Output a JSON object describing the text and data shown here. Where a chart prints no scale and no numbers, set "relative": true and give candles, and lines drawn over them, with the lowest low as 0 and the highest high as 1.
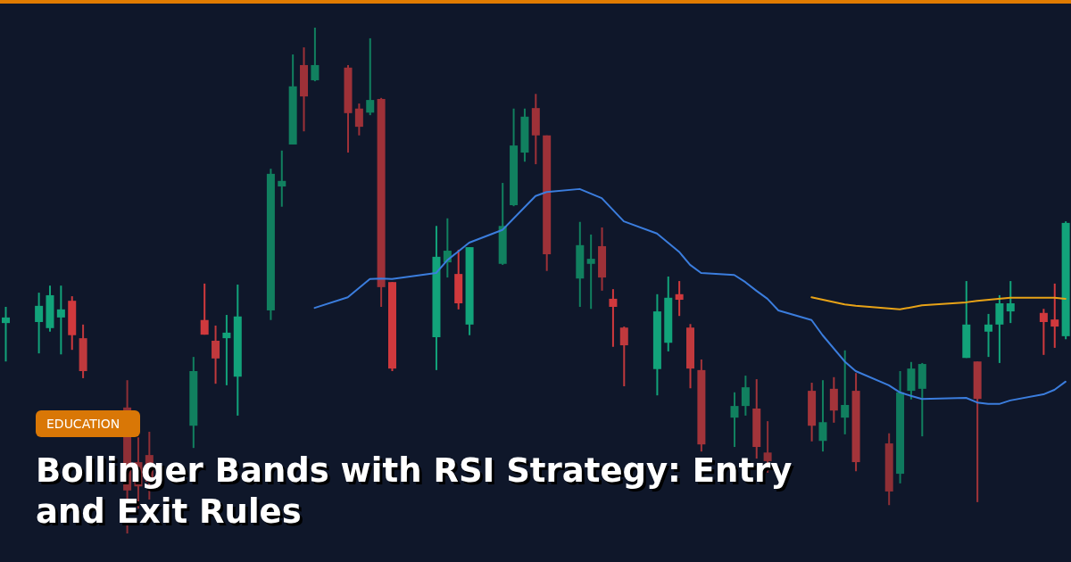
{
  "chart_data": {
    "type": "candlestick",
    "title": "Bollinger Bands with RSI Strategy: Entry and Exit Rules",
    "annotations": [
      "EDUCATION"
    ],
    "relative": true,
    "categories": [
      null,
      null,
      null,
      null,
      null,
      null,
      null,
      null,
      null,
      null,
      null,
      null,
      null,
      null,
      null,
      null,
      null,
      null,
      null,
      null,
      null,
      null,
      null,
      null,
      null,
      null,
      null,
      null,
      null,
      null,
      null,
      null,
      null,
      null,
      null,
      null,
      null,
      null,
      null,
      null,
      null,
      null,
      null,
      null,
      null,
      null,
      null,
      null,
      null,
      null,
      null,
      null,
      null,
      null,
      null,
      null,
      null,
      null,
      null,
      null,
      null,
      null,
      null,
      null,
      null,
      null,
      null,
      null,
      null,
      null,
      null,
      null,
      null,
      null,
      null,
      null,
      null,
      null,
      null,
      null,
      null,
      null,
      null,
      null,
      null,
      null,
      null,
      null,
      null,
      null,
      null,
      null,
      null,
      null,
      null,
      null,
      null
    ],
    "ohlc": [
      [
        0.416,
        0.448,
        0.34,
        0.427
      ],
      null,
      null,
      [
        0.418,
        0.476,
        0.356,
        0.45
      ],
      [
        0.406,
        0.49,
        0.399,
        0.471
      ],
      [
        0.427,
        0.49,
        0.354,
        0.443
      ],
      [
        0.46,
        0.469,
        0.363,
        0.392
      ],
      [
        0.386,
        0.413,
        0.307,
        0.321
      ],
      null,
      null,
      null,
      [
        0.249,
        0.303,
        0,
        0.085
      ],
      [
        0.141,
        0.19,
        0.049,
        0.093
      ],
      [
        0.155,
        0.201,
        0.067,
        0.102
      ],
      null,
      null,
      null,
      [
        0.213,
        0.349,
        0.169,
        0.321
      ],
      [
        0.422,
        0.494,
        0.393,
        0.393
      ],
      [
        0.381,
        0.411,
        0.296,
        0.346
      ],
      [
        0.386,
        0.432,
        0.293,
        0.397
      ],
      [
        0.31,
        0.492,
        0.233,
        0.429
      ],
      null,
      null,
      [
        0.441,
        0.721,
        0.422,
        0.711
      ],
      [
        0.686,
        0.757,
        0.646,
        0.697
      ],
      [
        0.769,
        0.947,
        0.769,
        0.884
      ],
      [
        0.926,
        0.961,
        0.795,
        0.864
      ],
      [
        0.896,
        1,
        0.894,
        0.926
      ],
      null,
      null,
      [
        0.921,
        0.926,
        0.753,
        0.831
      ],
      [
        0.84,
        0.85,
        0.787,
        0.804
      ],
      [
        0.832,
        0.979,
        0.827,
        0.857
      ],
      [
        0.859,
        0.861,
        0.448,
        0.487
      ],
      [
        0.497,
        0.497,
        0.321,
        0.326
      ],
      null,
      null,
      null,
      [
        0.388,
        0.608,
        0.323,
        0.547
      ],
      [
        0.536,
        0.623,
        0.506,
        0.559
      ],
      [
        0.513,
        0.561,
        0.443,
        0.455
      ],
      [
        0.413,
        0.566,
        0.392,
        0.566
      ],
      null,
      null,
      [
        0.533,
        0.693,
        0.531,
        0.608
      ],
      [
        0.649,
        0.84,
        0.647,
        0.767
      ],
      [
        0.753,
        0.84,
        0.735,
        0.824
      ],
      [
        0.841,
        0.869,
        0.73,
        0.787
      ],
      [
        0.787,
        0.787,
        0.519,
        0.552
      ],
      null,
      null,
      [
        0.504,
        0.616,
        0.448,
        0.57
      ],
      [
        0.533,
        0.591,
        0.444,
        0.543
      ],
      [
        0.568,
        0.605,
        0.48,
        0.506
      ],
      [
        0.464,
        0.483,
        0.369,
        0.448
      ],
      [
        0.407,
        0.409,
        0.291,
        0.372
      ],
      null,
      null,
      [
        0.325,
        0.473,
        0.273,
        0.439
      ],
      [
        0.377,
        0.508,
        0.36,
        0.466
      ],
      [
        0.473,
        0.499,
        0.43,
        0.462
      ],
      [
        0.407,
        0.414,
        0.287,
        0.326
      ],
      [
        0.323,
        0.344,
        0.162,
        0.176
      ],
      null,
      null,
      [
        0.229,
        0.279,
        0.171,
        0.252
      ],
      [
        0.252,
        0.312,
        0.233,
        0.289
      ],
      [
        0.247,
        0.305,
        0.148,
        0.171
      ],
      [
        0.16,
        0.222,
        0.12,
        0.143
      ],
      null,
      null,
      null,
      [
        0.282,
        0.298,
        0.182,
        0.213
      ],
      [
        0.183,
        0.303,
        0.162,
        0.22
      ],
      [
        0.286,
        0.309,
        0.219,
        0.243
      ],
      [
        0.229,
        0.362,
        0.196,
        0.254
      ],
      [
        0.282,
        0.317,
        0.123,
        0.141
      ],
      null,
      null,
      [
        0.178,
        0.198,
        0.056,
        0.083
      ],
      [
        0.118,
        0.321,
        0.099,
        0.279
      ],
      [
        0.282,
        0.339,
        0.265,
        0.326
      ],
      [
        0.286,
        0.337,
        0.192,
        0.335
      ],
      null,
      null,
      null,
      [
        0.347,
        0.499,
        0.347,
        0.413
      ],
      [
        0.34,
        0.34,
        0.062,
        0.266
      ],
      [
        0.399,
        0.434,
        0.349,
        0.413
      ],
      [
        0.413,
        0.471,
        0.337,
        0.455
      ],
      [
        0.439,
        0.499,
        0.416,
        0.455
      ],
      null,
      null,
      [
        0.436,
        0.444,
        0.353,
        0.418
      ],
      [
        0.423,
        0.494,
        0.367,
        0.409
      ],
      [
        0.39,
        0.617,
        0.384,
        0.614
      ]
    ],
    "colors": [
      "#12a37a",
      null,
      null,
      "#12a37a",
      "#12a37a",
      "#12a37a",
      "#d0393d",
      "#c0393d",
      null,
      null,
      null,
      "#8f2f36",
      "#8f2f36",
      "#8f2f36",
      null,
      null,
      null,
      "#11805f",
      "#d0393d",
      "#c0393d",
      "#12a37a",
      "#12a37a",
      null,
      null,
      "#11805f",
      "#11805f",
      "#11805f",
      "#9e3138",
      "#11805f",
      null,
      null,
      "#9e3138",
      "#9e3138",
      "#11805f",
      "#9e3138",
      "#d0393d",
      null,
      null,
      null,
      "#12a37a",
      "#11805f",
      "#d0393d",
      "#12a37a",
      null,
      null,
      "#11805f",
      "#11805f",
      "#11805f",
      "#9e3138",
      "#9e3138",
      null,
      null,
      "#11805f",
      "#11805f",
      "#9e3138",
      "#d0393d",
      "#c0393d",
      null,
      null,
      "#12a37a",
      "#12a37a",
      "#d0393d",
      "#c0393d",
      "#a3343a",
      null,
      null,
      "#11805f",
      "#11805f",
      "#a3343a",
      "#8f2f36",
      null,
      null,
      null,
      "#a3343a",
      "#11805f",
      "#a3343a",
      "#11805f",
      "#a3343a",
      null,
      null,
      "#8f2f36",
      "#0f7a5e",
      "#11805f",
      "#11805f",
      null,
      null,
      null,
      "#12a37a",
      "#a3343a",
      "#12a37a",
      "#12a37a",
      "#12a37a",
      null,
      null,
      "#d0393d",
      "#d0393d",
      "#12a37a"
    ],
    "series": [
      {
        "type": "line",
        "color": "#3b7ddd",
        "values": [
          null,
          null,
          null,
          null,
          null,
          null,
          null,
          null,
          null,
          null,
          null,
          null,
          null,
          null,
          null,
          null,
          null,
          null,
          null,
          null,
          null,
          null,
          null,
          null,
          null,
          null,
          null,
          null,
          0.446,
          null,
          null,
          0.467,
          null,
          0.503,
          0.504,
          0.503,
          null,
          null,
          null,
          0.515,
          0.54,
          null,
          0.575,
          null,
          null,
          0.6,
          null,
          null,
          0.667,
          0.675,
          null,
          null,
          0.681,
          null,
          0.663,
          0.64,
          0.617,
          null,
          null,
          0.593,
          null,
          0.557,
          0.531,
          0.515,
          null,
          null,
          0.511,
          0.497,
          0.48,
          0.464,
          0.441,
          null,
          null,
          0.422,
          0.392,
          null,
          0.34,
          0.321,
          null,
          null,
          0.293,
          0.279,
          0.272,
          0.266,
          null,
          null,
          null,
          0.268,
          0.259,
          0.256,
          0.256,
          0.263,
          null,
          null,
          0.275,
          0.284,
          0.3
        ]
      },
      {
        "type": "line",
        "color": "#e8a317",
        "values": [
          null,
          null,
          null,
          null,
          null,
          null,
          null,
          null,
          null,
          null,
          null,
          null,
          null,
          null,
          null,
          null,
          null,
          null,
          null,
          null,
          null,
          null,
          null,
          null,
          null,
          null,
          null,
          null,
          null,
          null,
          null,
          null,
          null,
          null,
          null,
          null,
          null,
          null,
          null,
          null,
          null,
          null,
          null,
          null,
          null,
          null,
          null,
          null,
          null,
          null,
          null,
          null,
          null,
          null,
          null,
          null,
          null,
          null,
          null,
          null,
          null,
          null,
          null,
          null,
          null,
          null,
          null,
          null,
          null,
          null,
          null,
          null,
          null,
          0.467,
          null,
          null,
          0.453,
          0.45,
          null,
          null,
          null,
          0.443,
          null,
          0.451,
          null,
          null,
          null,
          0.457,
          0.46,
          null,
          null,
          0.466,
          null,
          null,
          null,
          0.466,
          0.464
        ]
      }
    ]
  }
}
